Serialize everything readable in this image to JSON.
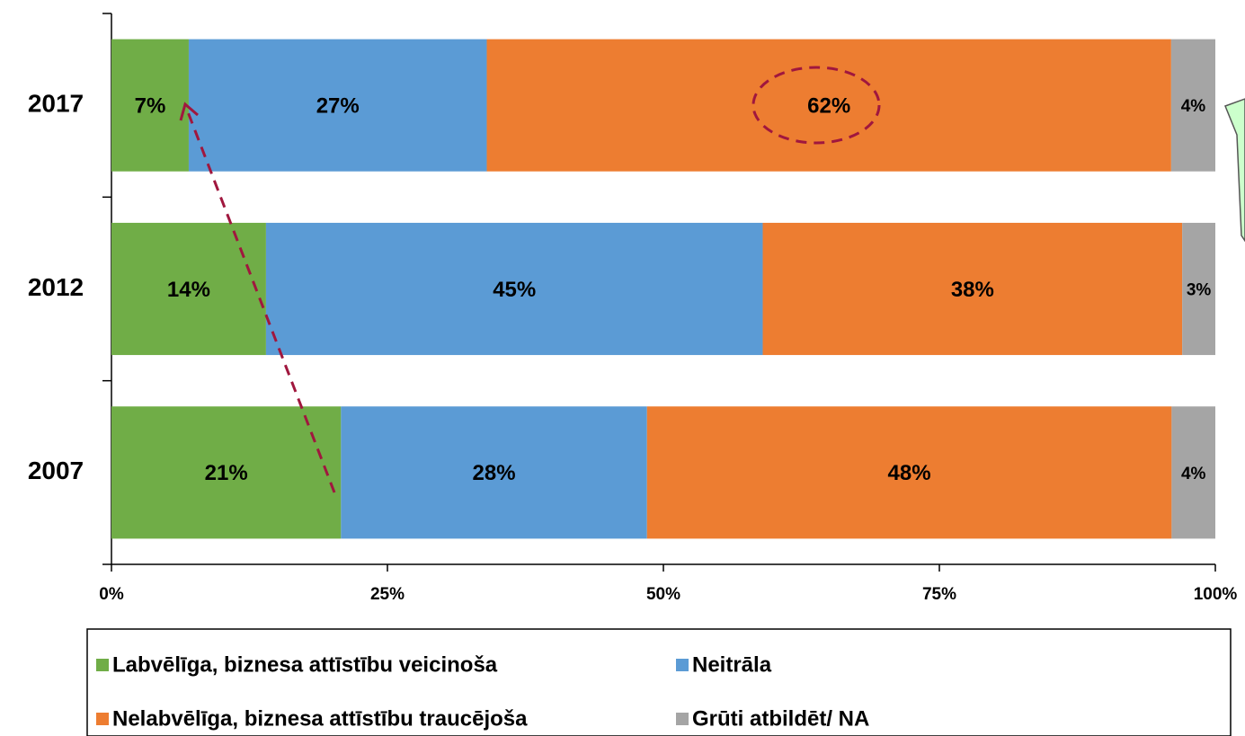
{
  "chart_data": {
    "type": "bar",
    "orientation": "horizontal",
    "stacking": "percent",
    "categories": [
      "2017",
      "2012",
      "2007"
    ],
    "series": [
      {
        "name": "Labvēlīga, biznesa attīstību veicinoša",
        "color": "#70ad47",
        "values": [
          7,
          14,
          21
        ],
        "value_labels": [
          "7%",
          "14%",
          "21%"
        ]
      },
      {
        "name": "Neitrāla",
        "color": "#5b9bd5",
        "values": [
          27,
          45,
          28
        ],
        "value_labels": [
          "27%",
          "45%",
          "28%"
        ]
      },
      {
        "name": "Nelabvēlīga, biznesa attīstību traucējoša",
        "color": "#ed7d31",
        "values": [
          62,
          38,
          48
        ],
        "value_labels": [
          "62%",
          "38%",
          "48%"
        ]
      },
      {
        "name": "Grūti atbildēt/ NA",
        "color": "#a5a5a5",
        "values": [
          4,
          3,
          4
        ],
        "value_labels": [
          "4%",
          "3%",
          "4%"
        ]
      }
    ],
    "xlim": [
      0,
      100
    ],
    "xticks": [
      {
        "value": 0,
        "label": "0%"
      },
      {
        "value": 25,
        "label": "25%"
      },
      {
        "value": 50,
        "label": "50%"
      },
      {
        "value": 75,
        "label": "75%"
      },
      {
        "value": 100,
        "label": "100%"
      }
    ],
    "grid": false,
    "legend": "bottom"
  }
}
